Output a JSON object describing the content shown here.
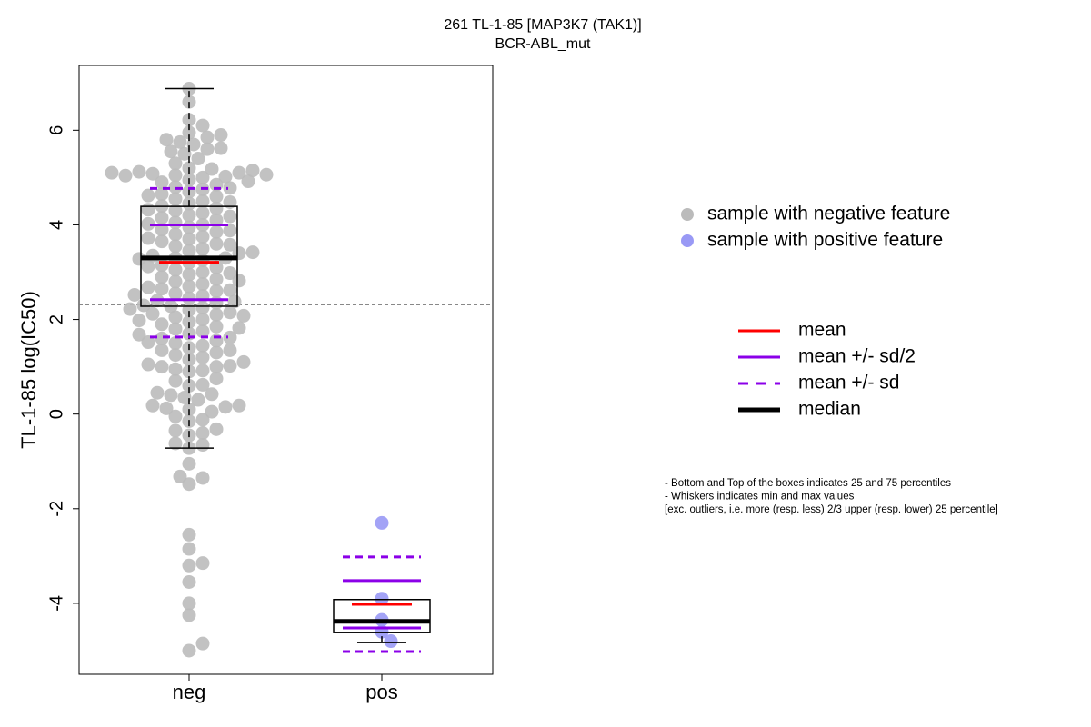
{
  "chart_data": {
    "type": "box-swarm",
    "title": "261 TL-1-85 [MAP3K7 (TAK1)]",
    "subtitle": "BCR-ABL_mut",
    "y_label": "TL-1-85 log(IC50)",
    "categories": [
      "neg",
      "pos"
    ],
    "ylim": [
      -5.5,
      7.37
    ],
    "yticks": [
      -4,
      -2,
      0,
      2,
      4,
      6
    ],
    "hline": 2.31,
    "series": [
      {
        "name": "sample with negative feature",
        "color": "#bbbbbb",
        "values": [
          -5.0,
          -4.85,
          -4.25,
          -4.0,
          -3.55,
          -3.2,
          -3.15,
          -2.85,
          -2.55,
          -1.48,
          -1.35,
          -1.32,
          -1.05,
          -0.72,
          -0.65,
          -0.62,
          -0.45,
          -0.4,
          -0.35,
          -0.32,
          -0.15,
          -0.12,
          -0.05,
          0.05,
          0.1,
          0.12,
          0.15,
          0.18,
          0.18,
          0.3,
          0.35,
          0.4,
          0.42,
          0.45,
          0.6,
          0.62,
          0.7,
          0.75,
          0.9,
          0.92,
          0.95,
          1.0,
          1.0,
          1.02,
          1.05,
          1.1,
          1.15,
          1.2,
          1.25,
          1.3,
          1.35,
          1.35,
          1.4,
          1.45,
          1.5,
          1.55,
          1.6,
          1.62,
          1.7,
          1.75,
          1.8,
          1.85,
          1.9,
          1.95,
          2.0,
          2.05,
          2.1,
          2.12,
          2.15,
          2.2,
          2.25,
          2.28,
          2.3,
          2.35,
          2.4,
          2.45,
          2.5,
          2.55,
          2.6,
          2.62,
          2.65,
          2.7,
          2.75,
          2.8,
          2.85,
          2.9,
          2.95,
          3.0,
          3.05,
          3.1,
          3.15,
          3.2,
          3.25,
          3.3,
          3.3,
          3.35,
          3.4,
          3.45,
          3.5,
          3.55,
          3.6,
          3.65,
          3.7,
          3.75,
          3.8,
          3.85,
          3.9,
          3.95,
          4.0,
          4.05,
          4.1,
          4.15,
          4.2,
          4.25,
          4.3,
          4.35,
          4.4,
          4.45,
          4.5,
          4.55,
          4.6,
          4.65,
          4.7,
          4.75,
          4.8,
          4.85,
          4.9,
          4.95,
          5.0,
          5.02,
          5.05,
          5.08,
          5.1,
          5.12,
          5.15,
          5.2,
          1.52,
          1.68,
          1.82,
          1.98,
          2.08,
          2.22,
          2.38,
          2.52,
          2.68,
          2.82,
          2.98,
          3.12,
          3.28,
          3.42,
          3.58,
          3.72,
          3.88,
          4.02,
          4.18,
          4.32,
          4.48,
          4.62,
          4.78,
          4.92,
          5.04,
          5.06,
          5.1,
          5.18,
          5.3,
          5.4,
          5.5,
          5.55,
          5.6,
          5.62,
          5.7,
          5.75,
          5.8,
          5.85,
          5.9,
          5.95,
          6.1,
          6.22,
          6.6,
          6.88
        ]
      },
      {
        "name": "sample with positive feature",
        "color": "#9999f5",
        "values": [
          -2.3,
          -3.9,
          -4.35,
          -4.6,
          -4.8
        ]
      }
    ],
    "boxes": [
      {
        "whisker_low": -0.72,
        "q1": 2.28,
        "median": 3.3,
        "q3": 4.39,
        "whisker_high": 6.88,
        "mean": 3.21,
        "mean_minus_half_sd": 2.42,
        "mean_plus_half_sd": 4.0,
        "mean_minus_sd": 1.63,
        "mean_plus_sd": 4.77
      },
      {
        "whisker_low": -4.83,
        "q1": -4.62,
        "median": -4.38,
        "q3": -3.92,
        "whisker_high": -3.92,
        "mean": -4.02,
        "mean_minus_half_sd": -4.52,
        "mean_plus_half_sd": -3.52,
        "mean_minus_sd": -5.02,
        "mean_plus_sd": -3.02
      }
    ],
    "line_legend": [
      {
        "label": "mean",
        "color": "#ff0000",
        "dash": false,
        "width": 3
      },
      {
        "label": "mean +/- sd/2",
        "color": "#8b00e8",
        "dash": false,
        "width": 3
      },
      {
        "label": "mean +/- sd",
        "color": "#8b00e8",
        "dash": true,
        "width": 3
      },
      {
        "label": "median",
        "color": "#000000",
        "dash": false,
        "width": 5
      }
    ],
    "notes": [
      "- Bottom and Top of the boxes indicates 25 and 75 percentiles",
      "- Whiskers indicates min and max values",
      "[exc. outliers, i.e. more (resp. less) 2/3 upper (resp. lower) 25 percentile]"
    ]
  }
}
